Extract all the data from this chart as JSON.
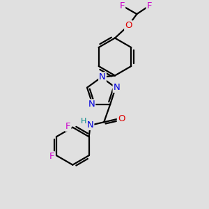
{
  "bg_color": "#e0e0e0",
  "bond_color": "#000000",
  "N_color": "#0000dd",
  "O_color": "#dd0000",
  "F_color": "#cc00cc",
  "H_color": "#008888",
  "line_width": 1.6,
  "font_size": 9.5,
  "fig_size": [
    3.0,
    3.0
  ],
  "dpi": 100,
  "xlim": [
    0,
    10
  ],
  "ylim": [
    0,
    10
  ]
}
